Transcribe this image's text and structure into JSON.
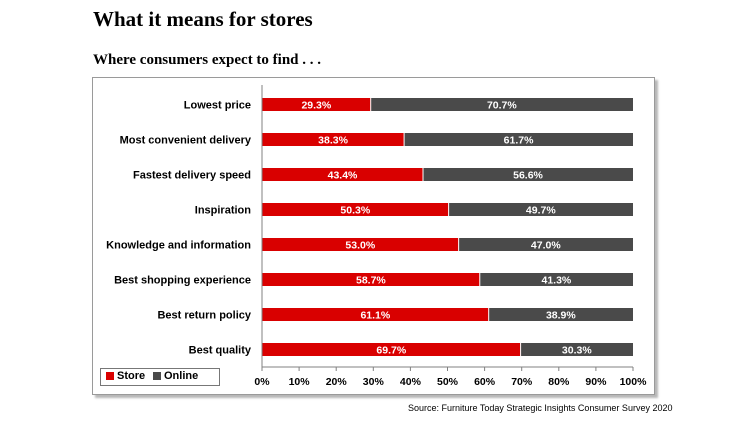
{
  "title": "What it means for stores",
  "subtitle": "Where consumers expect to find . . .",
  "source": "Source: Furniture Today Strategic Insights Consumer Survey 2020",
  "colors": {
    "store": "#d90000",
    "online": "#4a4a4a"
  },
  "legend": {
    "store": "Store",
    "online": "Online"
  },
  "chart_data": {
    "type": "bar",
    "orientation": "horizontal",
    "stacked": true,
    "percent_stacked": true,
    "categories": [
      "Lowest price",
      "Most convenient delivery",
      "Fastest delivery speed",
      "Inspiration",
      "Knowledge and information",
      "Best shopping experience",
      "Best return policy",
      "Best quality"
    ],
    "series": [
      {
        "name": "Store",
        "values": [
          29.3,
          38.3,
          43.4,
          50.3,
          53.0,
          58.7,
          61.1,
          69.7
        ]
      },
      {
        "name": "Online",
        "values": [
          70.7,
          61.7,
          56.6,
          49.7,
          47.0,
          41.3,
          38.9,
          30.3
        ]
      }
    ],
    "data_labels": {
      "Store": [
        "29.3%",
        "38.3%",
        "43.4%",
        "50.3%",
        "53.0%",
        "58.7%",
        "61.1%",
        "69.7%"
      ],
      "Online": [
        "70.7%",
        "61.7%",
        "56.6%",
        "49.7%",
        "47.0%",
        "41.3%",
        "38.9%",
        "30.3%"
      ]
    },
    "xlim": [
      0,
      100
    ],
    "x_ticks": [
      "0%",
      "10%",
      "20%",
      "30%",
      "40%",
      "50%",
      "60%",
      "70%",
      "80%",
      "90%",
      "100%"
    ],
    "grid": false,
    "legend_position": "bottom-left"
  }
}
